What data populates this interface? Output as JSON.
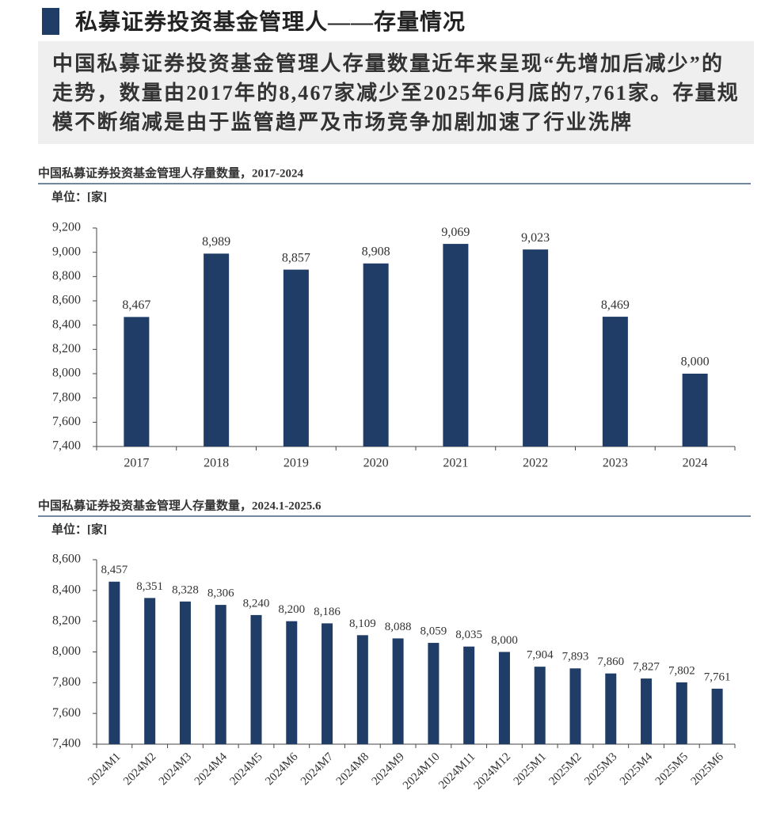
{
  "header": {
    "title": "私募证券投资基金管理人——存量情况",
    "summary": "中国私募证券投资基金管理人存量数量近年来呈现“先增加后减少”的走势，数量由2017年的8,467家减少至2025年6月底的7,761家。存量规模不断缩减是由于监管趋严及市场竞争加剧加速了行业洗牌"
  },
  "chart_data": [
    {
      "type": "bar",
      "title": "中国私募证券投资基金管理人存量数量，2017-2024",
      "unit": "单位：[家]",
      "categories": [
        "2017",
        "2018",
        "2019",
        "2020",
        "2021",
        "2022",
        "2023",
        "2024"
      ],
      "values": [
        8467,
        8989,
        8857,
        8908,
        9069,
        9023,
        8469,
        8000
      ],
      "value_labels": [
        "8,467",
        "8,989",
        "8,857",
        "8,908",
        "9,069",
        "9,023",
        "8,469",
        "8,000"
      ],
      "color": "#1f3d66",
      "ylim": [
        7400,
        9200
      ],
      "yticks": [
        {
          "value": 7400,
          "label": "7,400"
        },
        {
          "value": 7600,
          "label": "7,600"
        },
        {
          "value": 7800,
          "label": "7,800"
        },
        {
          "value": 8000,
          "label": "8,000"
        },
        {
          "value": 8200,
          "label": "8,200"
        },
        {
          "value": 8400,
          "label": "8,400"
        },
        {
          "value": 8600,
          "label": "8,600"
        },
        {
          "value": 8800,
          "label": "8,800"
        },
        {
          "value": 9000,
          "label": "9,000"
        },
        {
          "value": 9200,
          "label": "9,200"
        }
      ]
    },
    {
      "type": "bar",
      "title": "中国私募证券投资基金管理人存量数量，2024.1-2025.6",
      "unit": "单位：[家]",
      "categories": [
        "2024M1",
        "2024M2",
        "2024M3",
        "2024M4",
        "2024M5",
        "2024M6",
        "2024M7",
        "2024M8",
        "2024M9",
        "2024M10",
        "2024M11",
        "2024M12",
        "2025M1",
        "2025M2",
        "2025M3",
        "2025M4",
        "2025M5",
        "2025M6"
      ],
      "values": [
        8457,
        8351,
        8328,
        8306,
        8240,
        8200,
        8186,
        8109,
        8088,
        8059,
        8035,
        8000,
        7904,
        7893,
        7860,
        7827,
        7802,
        7761
      ],
      "value_labels": [
        "8,457",
        "8,351",
        "8,328",
        "8,306",
        "8,240",
        "8,200",
        "8,186",
        "8,109",
        "8,088",
        "8,059",
        "8,035",
        "8,000",
        "7,904",
        "7,893",
        "7,860",
        "7,827",
        "7,802",
        "7,761"
      ],
      "color": "#1f3d66",
      "ylim": [
        7400,
        8600
      ],
      "yticks": [
        {
          "value": 7400,
          "label": "7,400"
        },
        {
          "value": 7600,
          "label": "7,600"
        },
        {
          "value": 7800,
          "label": "7,800"
        },
        {
          "value": 8000,
          "label": "8,000"
        },
        {
          "value": 8200,
          "label": "8,200"
        },
        {
          "value": 8400,
          "label": "8,400"
        },
        {
          "value": 8600,
          "label": "8,600"
        }
      ]
    }
  ]
}
